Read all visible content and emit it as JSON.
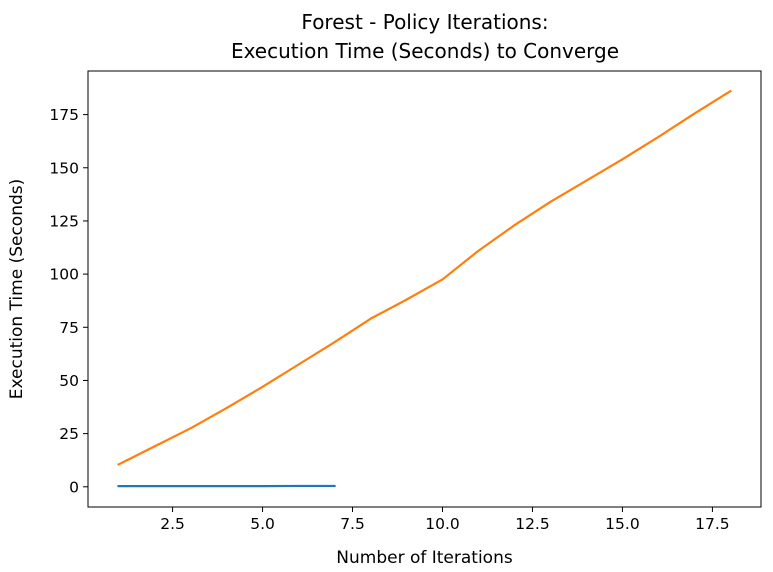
{
  "chart_data": {
    "type": "line",
    "title": [
      "Forest - Policy Iterations:",
      "Execution Time (Seconds) to Converge"
    ],
    "xlabel": "Number of Iterations",
    "ylabel": "Execution Time (Seconds)",
    "xlim": [
      0.15,
      18.85
    ],
    "ylim": [
      -9.5,
      195.5
    ],
    "xticks": [
      2.5,
      5.0,
      7.5,
      10.0,
      12.5,
      15.0,
      17.5
    ],
    "xtick_labels": [
      "2.5",
      "5.0",
      "7.5",
      "10.0",
      "12.5",
      "15.0",
      "17.5"
    ],
    "yticks": [
      0,
      25,
      50,
      75,
      100,
      125,
      150,
      175
    ],
    "ytick_labels": [
      "0",
      "25",
      "50",
      "75",
      "100",
      "125",
      "150",
      "175"
    ],
    "grid": false,
    "series": [
      {
        "color": "#1f77b4",
        "x": [
          1,
          2,
          3,
          4,
          5,
          6,
          7
        ],
        "y": [
          0.3,
          0.3,
          0.3,
          0.3,
          0.3,
          0.4,
          0.4
        ]
      },
      {
        "color": "#ff7f0e",
        "x": [
          1,
          2,
          3,
          4,
          5,
          6,
          7,
          8,
          9,
          10,
          11,
          12,
          13,
          14,
          15,
          16,
          17,
          18
        ],
        "y": [
          10.5,
          19,
          27.5,
          37,
          47,
          57.5,
          68,
          79,
          88,
          97.5,
          111,
          123,
          134,
          144,
          154,
          164.5,
          175.5,
          186
        ]
      }
    ]
  }
}
